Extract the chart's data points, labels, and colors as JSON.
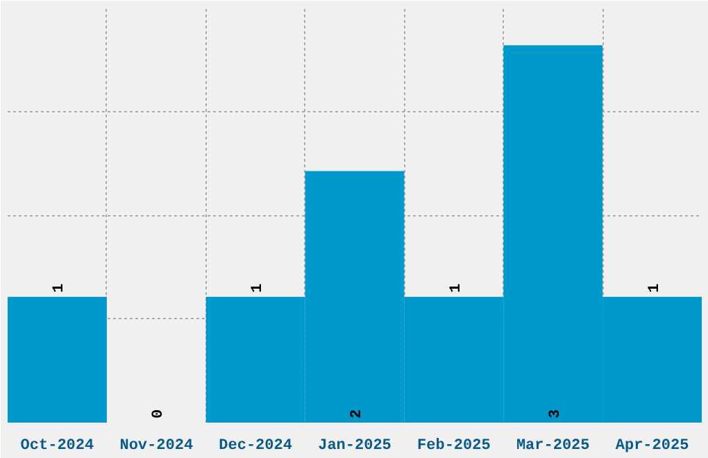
{
  "chart_data": {
    "type": "bar",
    "categories": [
      "Oct-2024",
      "Nov-2024",
      "Dec-2024",
      "Jan-2025",
      "Feb-2025",
      "Mar-2025",
      "Apr-2025"
    ],
    "values": [
      1,
      0,
      1,
      2,
      1,
      3,
      1
    ],
    "color": "#0099cc",
    "data_labels": true,
    "grid": true,
    "tick_labels": "x",
    "ylim": [
      0,
      3.3
    ]
  }
}
